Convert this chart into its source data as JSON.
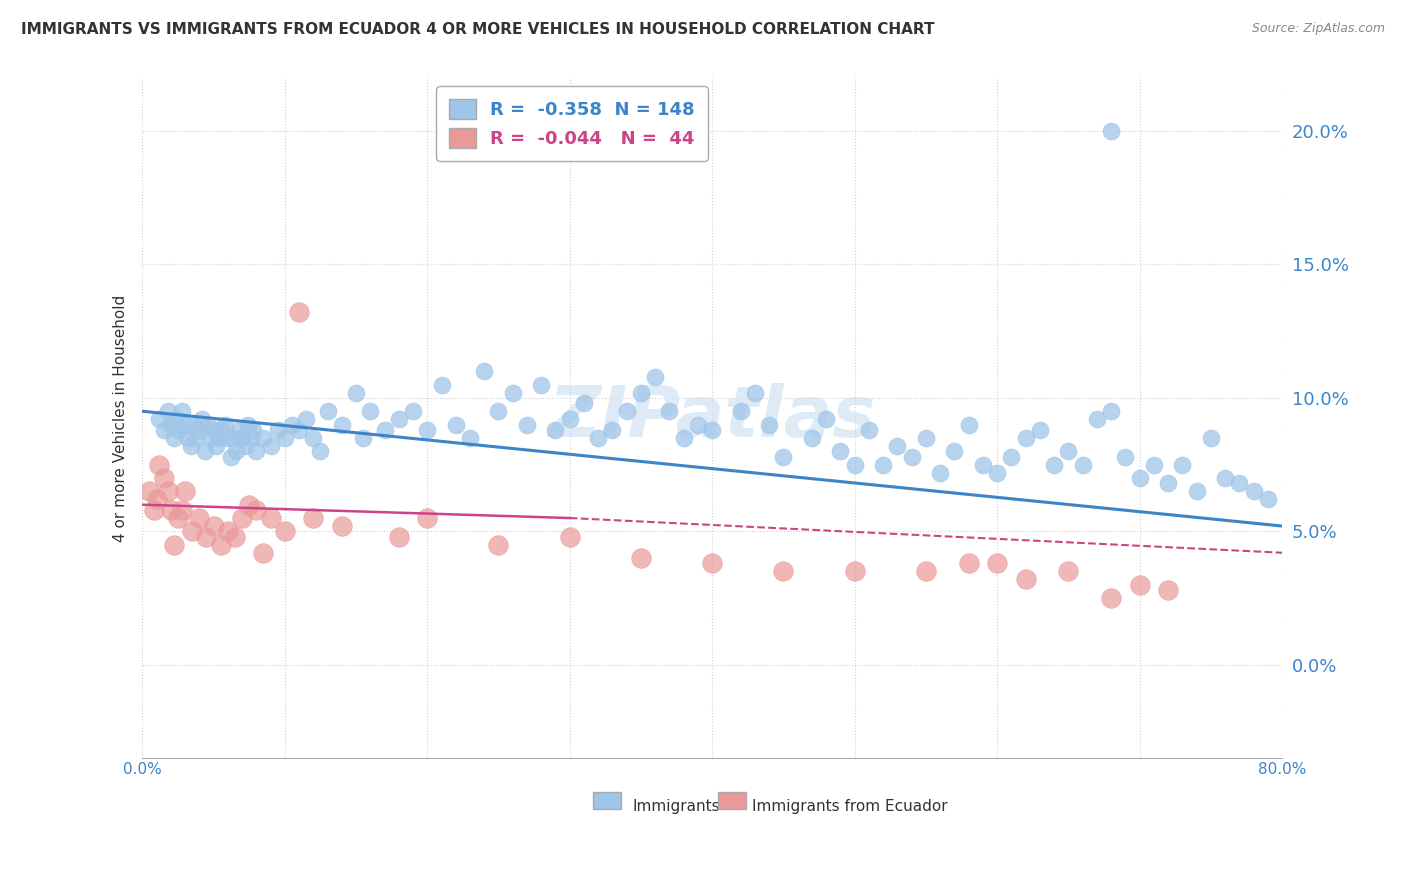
{
  "title": "IMMIGRANTS VS IMMIGRANTS FROM ECUADOR 4 OR MORE VEHICLES IN HOUSEHOLD CORRELATION CHART",
  "source": "Source: ZipAtlas.com",
  "ylabel": "4 or more Vehicles in Household",
  "ytick_vals": [
    0.0,
    5.0,
    10.0,
    15.0,
    20.0
  ],
  "xmin": 0.0,
  "xmax": 80.0,
  "ymin": -3.5,
  "ymax": 22.0,
  "blue_R": -0.358,
  "blue_N": 148,
  "pink_R": -0.044,
  "pink_N": 44,
  "blue_color": "#9fc5e8",
  "pink_color": "#ea9999",
  "blue_line_color": "#3d85c8",
  "pink_line_color": "#cc4488",
  "watermark": "ZIPatlas",
  "legend_immigrants": "Immigrants",
  "legend_ecuador": "Immigrants from Ecuador",
  "blue_line_x0": 0.0,
  "blue_line_x1": 80.0,
  "blue_line_y0": 9.5,
  "blue_line_y1": 5.2,
  "pink_line_x0": 0.0,
  "pink_line_x1": 30.0,
  "pink_line_y0": 6.0,
  "pink_line_y1": 5.5,
  "pink_dline_x0": 30.0,
  "pink_dline_x1": 80.0,
  "pink_dline_y0": 5.5,
  "pink_dline_y1": 4.2,
  "blue_scatter_x": [
    1.2,
    1.5,
    1.8,
    2.0,
    2.2,
    2.4,
    2.6,
    2.8,
    3.0,
    3.2,
    3.4,
    3.6,
    3.8,
    4.0,
    4.2,
    4.4,
    4.6,
    4.8,
    5.0,
    5.2,
    5.4,
    5.6,
    5.8,
    6.0,
    6.2,
    6.4,
    6.6,
    6.8,
    7.0,
    7.2,
    7.4,
    7.6,
    7.8,
    8.0,
    8.5,
    9.0,
    9.5,
    10.0,
    10.5,
    11.0,
    11.5,
    12.0,
    12.5,
    13.0,
    14.0,
    15.0,
    15.5,
    16.0,
    17.0,
    18.0,
    19.0,
    20.0,
    21.0,
    22.0,
    23.0,
    24.0,
    25.0,
    26.0,
    27.0,
    28.0,
    29.0,
    30.0,
    31.0,
    32.0,
    33.0,
    34.0,
    35.0,
    36.0,
    37.0,
    38.0,
    39.0,
    40.0,
    42.0,
    43.0,
    44.0,
    45.0,
    47.0,
    48.0,
    49.0,
    50.0,
    51.0,
    52.0,
    53.0,
    54.0,
    55.0,
    56.0,
    57.0,
    58.0,
    59.0,
    60.0,
    61.0,
    62.0,
    63.0,
    64.0,
    65.0,
    66.0,
    67.0,
    68.0,
    69.0,
    70.0,
    71.0,
    72.0,
    73.0,
    74.0,
    75.0,
    76.0,
    77.0,
    78.0,
    79.0,
    68.0
  ],
  "blue_scatter_y": [
    9.2,
    8.8,
    9.5,
    9.0,
    8.5,
    9.2,
    8.8,
    9.5,
    9.0,
    8.5,
    8.2,
    9.0,
    8.5,
    8.8,
    9.2,
    8.0,
    9.0,
    8.5,
    8.8,
    8.2,
    8.5,
    8.8,
    9.0,
    8.5,
    7.8,
    8.5,
    8.0,
    8.8,
    8.5,
    8.2,
    9.0,
    8.5,
    8.8,
    8.0,
    8.5,
    8.2,
    8.8,
    8.5,
    9.0,
    8.8,
    9.2,
    8.5,
    8.0,
    9.5,
    9.0,
    10.2,
    8.5,
    9.5,
    8.8,
    9.2,
    9.5,
    8.8,
    10.5,
    9.0,
    8.5,
    11.0,
    9.5,
    10.2,
    9.0,
    10.5,
    8.8,
    9.2,
    9.8,
    8.5,
    8.8,
    9.5,
    10.2,
    10.8,
    9.5,
    8.5,
    9.0,
    8.8,
    9.5,
    10.2,
    9.0,
    7.8,
    8.5,
    9.2,
    8.0,
    7.5,
    8.8,
    7.5,
    8.2,
    7.8,
    8.5,
    7.2,
    8.0,
    9.0,
    7.5,
    7.2,
    7.8,
    8.5,
    8.8,
    7.5,
    8.0,
    7.5,
    9.2,
    9.5,
    7.8,
    7.0,
    7.5,
    6.8,
    7.5,
    6.5,
    8.5,
    7.0,
    6.8,
    6.5,
    6.2,
    20.0
  ],
  "pink_scatter_x": [
    0.5,
    0.8,
    1.0,
    1.2,
    1.5,
    1.8,
    2.0,
    2.2,
    2.5,
    2.8,
    3.0,
    3.5,
    4.0,
    4.5,
    5.0,
    5.5,
    6.0,
    6.5,
    7.0,
    7.5,
    8.0,
    8.5,
    9.0,
    10.0,
    11.0,
    12.0,
    14.0,
    18.0,
    20.0,
    25.0,
    30.0,
    55.0,
    60.0,
    62.0,
    65.0,
    68.0,
    70.0,
    72.0,
    50.0,
    58.0,
    45.0,
    40.0,
    35.0
  ],
  "pink_scatter_y": [
    6.5,
    5.8,
    6.2,
    7.5,
    7.0,
    6.5,
    5.8,
    4.5,
    5.5,
    5.8,
    6.5,
    5.0,
    5.5,
    4.8,
    5.2,
    4.5,
    5.0,
    4.8,
    5.5,
    6.0,
    5.8,
    4.2,
    5.5,
    5.0,
    13.2,
    5.5,
    5.2,
    4.8,
    5.5,
    4.5,
    4.8,
    3.5,
    3.8,
    3.2,
    3.5,
    2.5,
    3.0,
    2.8,
    3.5,
    3.8,
    3.5,
    3.8,
    4.0
  ]
}
